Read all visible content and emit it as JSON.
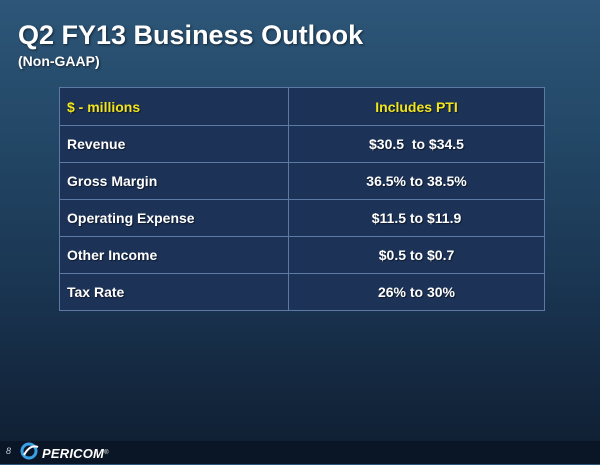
{
  "slide": {
    "title": "Q2 FY13 Business Outlook",
    "subtitle": "(Non-GAAP)",
    "page_number": "8"
  },
  "table": {
    "header": {
      "label": "$ - millions",
      "value": "Includes PTI"
    },
    "rows": [
      {
        "label": "Revenue",
        "value": "$30.5  to $34.5"
      },
      {
        "label": "Gross Margin",
        "value": "36.5% to 38.5%"
      },
      {
        "label": "Operating Expense",
        "value": "$11.5 to $11.9"
      },
      {
        "label": "Other Income",
        "value": "$0.5 to $0.7"
      },
      {
        "label": "Tax Rate",
        "value": "26% to 30%"
      }
    ]
  },
  "footer": {
    "logo_text": "PERICOM",
    "logo_icon": "pericom-swoosh-icon"
  },
  "colors": {
    "header_text": "#f2e51b",
    "table_bg": "#1c3257",
    "table_border": "#5c7aa3"
  }
}
